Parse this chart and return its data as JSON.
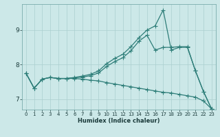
{
  "xlabel": "Humidex (Indice chaleur)",
  "bg_color": "#cce8e8",
  "grid_color": "#aacfcf",
  "line_color": "#2d7d78",
  "xlim": [
    -0.5,
    23.5
  ],
  "ylim": [
    6.7,
    9.75
  ],
  "yticks": [
    7,
    8,
    9
  ],
  "xticks": [
    0,
    1,
    2,
    3,
    4,
    5,
    6,
    7,
    8,
    9,
    10,
    11,
    12,
    13,
    14,
    15,
    16,
    17,
    18,
    19,
    20,
    21,
    22,
    23
  ],
  "curve1_x": [
    0,
    1,
    2,
    3,
    4,
    5,
    6,
    7,
    8,
    9,
    10,
    11,
    12,
    13,
    14,
    15,
    16,
    17,
    18,
    19,
    20,
    21,
    22,
    23
  ],
  "curve1_y": [
    7.75,
    7.32,
    7.58,
    7.63,
    7.6,
    7.6,
    7.63,
    7.67,
    7.72,
    7.82,
    8.03,
    8.18,
    8.3,
    8.52,
    8.78,
    9.0,
    9.12,
    9.58,
    8.42,
    8.5,
    8.5,
    7.82,
    7.22,
    6.72
  ],
  "curve2_x": [
    0,
    1,
    2,
    3,
    4,
    5,
    6,
    7,
    8,
    9,
    10,
    11,
    12,
    13,
    14,
    15,
    16,
    17,
    18,
    19,
    20,
    21,
    22,
    23
  ],
  "curve2_y": [
    7.75,
    7.32,
    7.58,
    7.63,
    7.6,
    7.6,
    7.62,
    7.64,
    7.68,
    7.76,
    7.95,
    8.09,
    8.2,
    8.4,
    8.68,
    8.85,
    8.42,
    8.5,
    8.5,
    8.52,
    8.52,
    7.82,
    7.22,
    6.72
  ],
  "curve3_x": [
    0,
    1,
    2,
    3,
    4,
    5,
    6,
    7,
    8,
    9,
    10,
    11,
    12,
    13,
    14,
    15,
    16,
    17,
    18,
    19,
    20,
    21,
    22,
    23
  ],
  "curve3_y": [
    7.75,
    7.32,
    7.58,
    7.63,
    7.6,
    7.6,
    7.6,
    7.58,
    7.55,
    7.53,
    7.48,
    7.44,
    7.4,
    7.36,
    7.32,
    7.28,
    7.24,
    7.2,
    7.18,
    7.14,
    7.1,
    7.06,
    6.95,
    6.72
  ]
}
